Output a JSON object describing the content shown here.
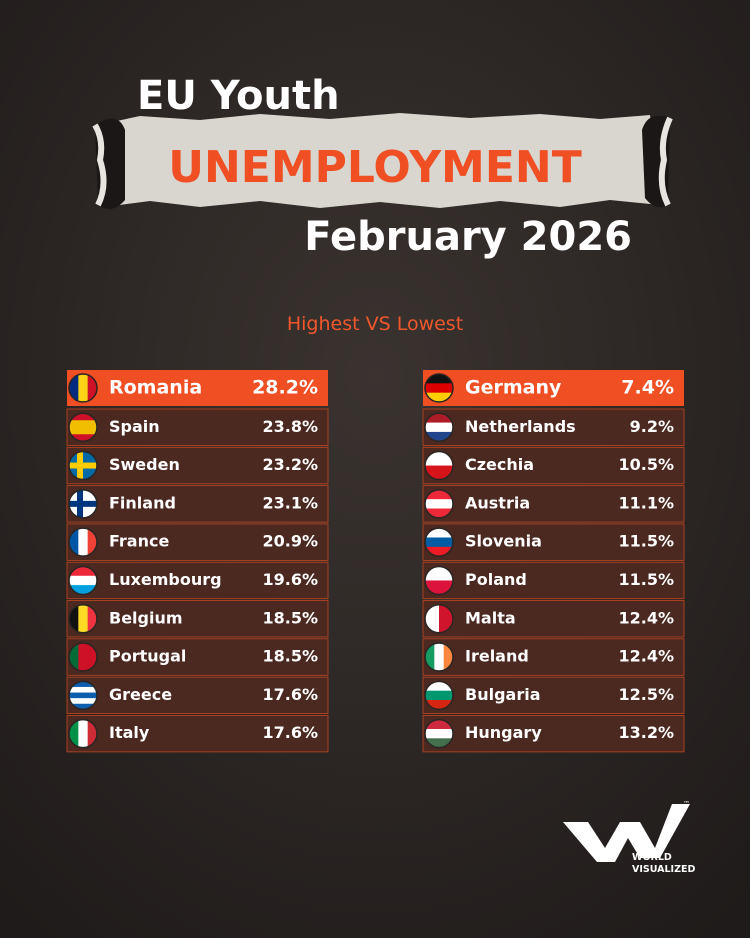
{
  "header": {
    "title_line1": "EU Youth",
    "title_highlight": "UNEMPLOYMENT",
    "title_line3": "February 2026",
    "subtitle": "Highest VS Lowest"
  },
  "tables": [
    {
      "rows": [
        {
          "country": "Romania",
          "value": "28.2%"
        },
        {
          "country": "Spain",
          "value": "23.8%"
        },
        {
          "country": "Sweden",
          "value": "23.2%"
        },
        {
          "country": "Finland",
          "value": "23.1%"
        },
        {
          "country": "France",
          "value": "20.9%"
        },
        {
          "country": "Luxembourg",
          "value": "19.6%"
        },
        {
          "country": "Belgium",
          "value": "18.5%"
        },
        {
          "country": "Portugal",
          "value": "18.5%"
        },
        {
          "country": "Greece",
          "value": "17.6%"
        },
        {
          "country": "Italy",
          "value": "17.6%"
        }
      ]
    },
    {
      "rows": [
        {
          "country": "Germany",
          "value": "7.4%"
        },
        {
          "country": "Netherlands",
          "value": "9.2%"
        },
        {
          "country": "Czechia",
          "value": "10.5%"
        },
        {
          "country": "Austria",
          "value": "11.1%"
        },
        {
          "country": "Slovenia",
          "value": "11.5%"
        },
        {
          "country": "Poland",
          "value": "11.5%"
        },
        {
          "country": "Malta",
          "value": "12.4%"
        },
        {
          "country": "Ireland",
          "value": "12.4%"
        },
        {
          "country": "Bulgaria",
          "value": "12.5%"
        },
        {
          "country": "Hungary",
          "value": "13.2%"
        }
      ]
    }
  ],
  "logo": {
    "line1": "WORLD",
    "line2": "VISUALIZED"
  }
}
